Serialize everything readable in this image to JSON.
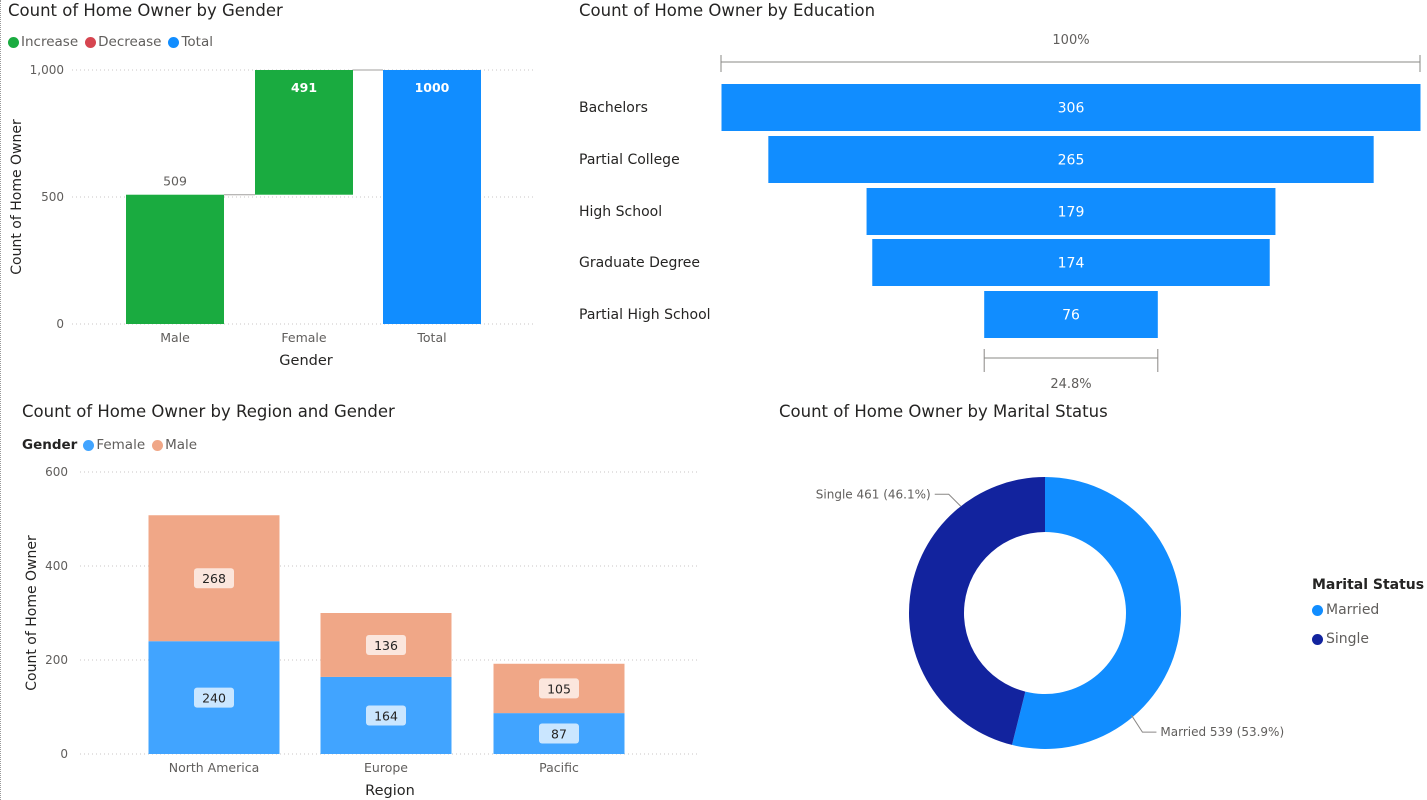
{
  "colors": {
    "increase": "#1aab40",
    "decrease": "#d64550",
    "total": "#118dff",
    "female": "#41a4ff",
    "male": "#f0a787",
    "married": "#118dff",
    "single": "#12239e",
    "funnel": "#118dff"
  },
  "icons": {
    "legend_marker": "circle-dot-icon"
  },
  "chart_data": [
    {
      "id": "gender",
      "type": "bar",
      "subtype": "waterfall",
      "title": "Count of Home Owner by Gender",
      "xlabel": "Gender",
      "ylabel": "Count of Home Owner",
      "legend": [
        "Increase",
        "Decrease",
        "Total"
      ],
      "legend_placement": "top-left",
      "categories": [
        "Male",
        "Female",
        "Total"
      ],
      "values": [
        509,
        491,
        1000
      ],
      "kinds": [
        "increase",
        "increase",
        "total"
      ],
      "labels": [
        "509",
        "491",
        "1000"
      ],
      "yticks": [
        0,
        500,
        1000
      ],
      "ytick_labels": [
        "0",
        "500",
        "1,000"
      ],
      "ylim": [
        0,
        1000
      ],
      "grid": true
    },
    {
      "id": "education",
      "type": "bar",
      "subtype": "funnel",
      "title": "Count of Home Owner by Education",
      "categories": [
        "Bachelors",
        "Partial College",
        "High School",
        "Graduate Degree",
        "Partial High School"
      ],
      "values": [
        306,
        265,
        179,
        174,
        76
      ],
      "labels": [
        "306",
        "265",
        "179",
        "174",
        "76"
      ],
      "top_percent": "100%",
      "bottom_percent": "24.8%"
    },
    {
      "id": "region",
      "type": "bar",
      "subtype": "stacked",
      "title": "Count of Home Owner by Region and Gender",
      "xlabel": "Region",
      "ylabel": "Count of Home Owner",
      "legend_title": "Gender",
      "legend_placement": "top-left",
      "categories": [
        "North America",
        "Europe",
        "Pacific"
      ],
      "series": [
        {
          "name": "Female",
          "values": [
            240,
            164,
            87
          ]
        },
        {
          "name": "Male",
          "values": [
            268,
            136,
            105
          ]
        }
      ],
      "yticks": [
        0,
        200,
        400,
        600
      ],
      "ytick_labels": [
        "0",
        "200",
        "400",
        "600"
      ],
      "ylim": [
        0,
        600
      ],
      "grid": true
    },
    {
      "id": "marital",
      "type": "pie",
      "subtype": "donut",
      "title": "Count of Home Owner by Marital Status",
      "legend_title": "Marital Status",
      "legend_placement": "right",
      "categories": [
        "Married",
        "Single"
      ],
      "values": [
        539,
        461
      ],
      "labels": [
        "Married 539 (53.9%)",
        "Single 461 (46.1%)"
      ]
    }
  ]
}
